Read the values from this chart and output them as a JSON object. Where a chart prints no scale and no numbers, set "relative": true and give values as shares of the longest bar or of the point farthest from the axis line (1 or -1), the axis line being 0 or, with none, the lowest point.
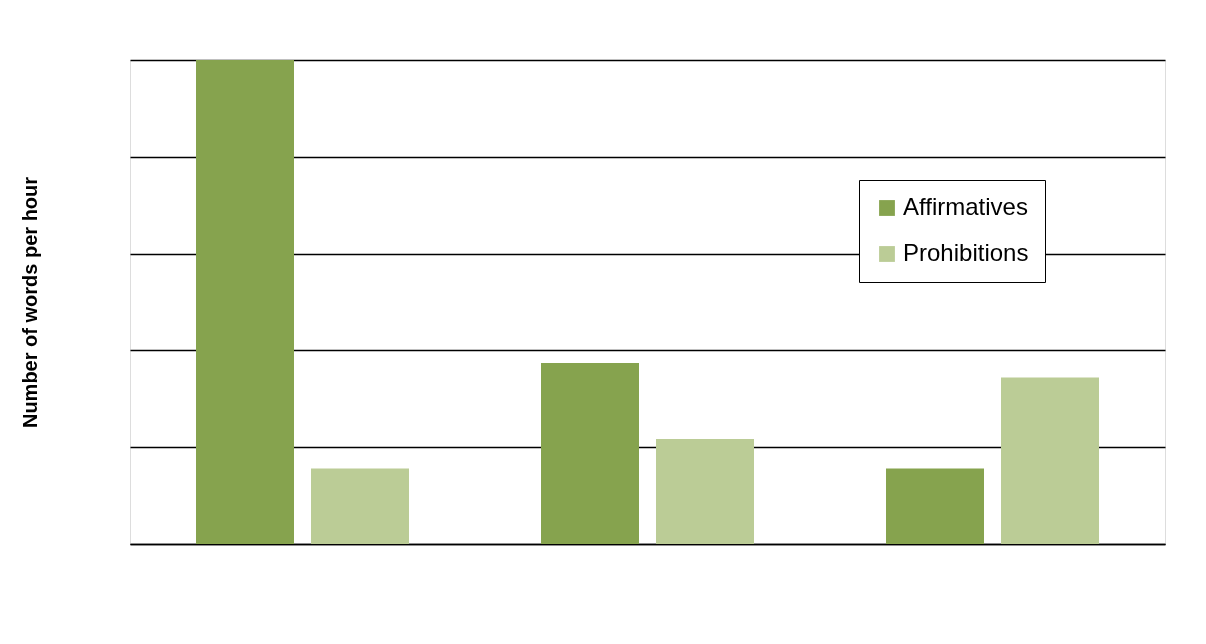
{
  "chart_data": {
    "type": "bar",
    "ylabel": "Number of words per hour",
    "relative": true,
    "categories": [
      null,
      null,
      null
    ],
    "series": [
      {
        "name": "Affirmatives",
        "color": "#86a34e",
        "values": [
          1,
          0.374,
          0.156
        ]
      },
      {
        "name": "Prohibitions",
        "color": "#bbcc96",
        "values": [
          0.156,
          0.217,
          0.344
        ]
      }
    ],
    "grid": "y",
    "legend": "top right"
  }
}
